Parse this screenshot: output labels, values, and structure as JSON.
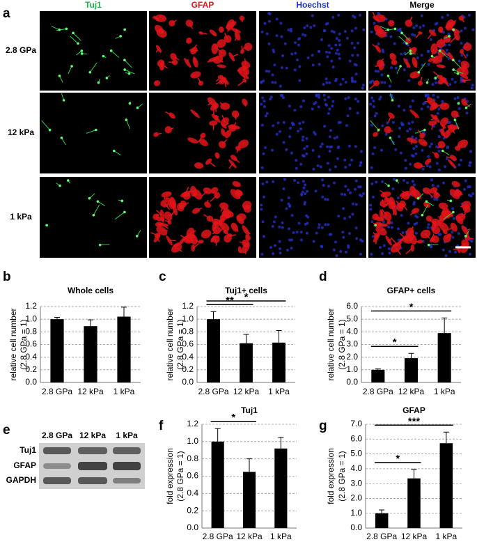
{
  "panel_a": {
    "panel": "a",
    "columns": [
      {
        "label": "Tuj1",
        "color": "#22b14c"
      },
      {
        "label": "GFAP",
        "color": "#e8141b"
      },
      {
        "label": "Hoechst",
        "color": "#1a2fd0"
      },
      {
        "label": "Merge",
        "color": "#000000"
      }
    ],
    "rows": [
      "2.8 GPa",
      "12 kPa",
      "1 kPa"
    ]
  },
  "panel_e": {
    "panel": "e",
    "columns": [
      "2.8 GPa",
      "12 kPa",
      "1 kPa"
    ],
    "rows": [
      "Tuj1",
      "GFAP",
      "GAPDH"
    ]
  },
  "chart_data": [
    {
      "type": "bar",
      "panel": "b",
      "title": "Whole cells",
      "ylabel": [
        "relative cell number",
        "(2.8 GPa = 1)"
      ],
      "categories": [
        "2.8 GPa",
        "12 kPa",
        "1 kPa"
      ],
      "series": [
        {
          "color": "#000000",
          "values": [
            1.0,
            0.89,
            1.04
          ],
          "errors": [
            0.03,
            0.1,
            0.15
          ]
        }
      ],
      "ylim": [
        0,
        1.2
      ],
      "yticks": [
        {
          "value": 0,
          "label": "0.0"
        },
        0.2,
        0.4,
        0.6,
        0.8,
        {
          "value": 1,
          "label": "1.0"
        },
        1.2
      ],
      "grid": true,
      "annotations": []
    },
    {
      "type": "bar",
      "panel": "c",
      "title": "Tuj1+ cells",
      "ylabel": [
        "relative cell number",
        "(2.8 GPa = 1)"
      ],
      "categories": [
        "2.8 GPa",
        "12 kPa",
        "1 kPa"
      ],
      "series": [
        {
          "color": "#000000",
          "values": [
            1.0,
            0.62,
            0.63
          ],
          "errors": [
            0.12,
            0.14,
            0.19
          ]
        }
      ],
      "ylim": [
        0,
        1.2
      ],
      "yticks": [
        {
          "value": 0,
          "label": "0.0"
        },
        0.2,
        0.4,
        0.6,
        0.8,
        {
          "value": 1,
          "label": "1.0"
        },
        1.2
      ],
      "grid": true,
      "annotations": [
        {
          "text": "**",
          "categories": [
            "2.8 GPa",
            "12 kPa"
          ]
        },
        {
          "text": "*",
          "categories": [
            "2.8 GPa",
            "1 kPa"
          ]
        }
      ]
    },
    {
      "type": "bar",
      "panel": "d",
      "title": "GFAP+ cells",
      "ylabel": [
        "relative cell number",
        "(2.8 GPa = 1)"
      ],
      "categories": [
        "2.8 GPa",
        "12 kPa",
        "1 kPa"
      ],
      "series": [
        {
          "color": "#000000",
          "values": [
            1.0,
            1.92,
            3.9
          ],
          "errors": [
            0.07,
            0.38,
            1.2
          ]
        }
      ],
      "ylim": [
        0,
        6
      ],
      "yticks": [
        {
          "value": 0,
          "label": "0.0"
        },
        {
          "value": 1,
          "label": "1.0"
        },
        {
          "value": 2,
          "label": "2.0"
        },
        {
          "value": 3,
          "label": "3.0"
        },
        {
          "value": 4,
          "label": "4.0"
        },
        {
          "value": 5,
          "label": "5.0"
        },
        {
          "value": 6,
          "label": "6.0"
        }
      ],
      "grid": true,
      "annotations": [
        {
          "text": "*",
          "categories": [
            "2.8 GPa",
            "12 kPa"
          ]
        },
        {
          "text": "*",
          "categories": [
            "2.8 GPa",
            "1 kPa"
          ]
        }
      ]
    },
    {
      "type": "bar",
      "panel": "f",
      "title": "Tuj1",
      "ylabel": [
        "fold expression",
        "(2.8 GPa = 1)"
      ],
      "categories": [
        "2.8 GPa",
        "12 kPa",
        "1 kPa"
      ],
      "series": [
        {
          "color": "#000000",
          "values": [
            1.0,
            0.65,
            0.92
          ],
          "errors": [
            0.15,
            0.15,
            0.13
          ]
        }
      ],
      "ylim": [
        0,
        1.2
      ],
      "yticks": [
        {
          "value": 0,
          "label": "0.0"
        },
        0.2,
        0.4,
        0.6,
        0.8,
        {
          "value": 1,
          "label": "1.0"
        },
        1.2
      ],
      "grid": true,
      "annotations": [
        {
          "text": "*",
          "categories": [
            "2.8 GPa",
            "12 kPa"
          ]
        }
      ]
    },
    {
      "type": "bar",
      "panel": "g",
      "title": "GFAP",
      "ylabel": [
        "fold expression",
        "(2.8 GPa = 1)"
      ],
      "categories": [
        "2.8 GPa",
        "12 kPa",
        "1 kPa"
      ],
      "series": [
        {
          "color": "#000000",
          "values": [
            1.0,
            3.35,
            5.72
          ],
          "errors": [
            0.22,
            0.6,
            0.75
          ]
        }
      ],
      "ylim": [
        0,
        7
      ],
      "yticks": [
        {
          "value": 0,
          "label": "0.0"
        },
        {
          "value": 1,
          "label": "1.0"
        },
        {
          "value": 2,
          "label": "2.0"
        },
        {
          "value": 3,
          "label": "3.0"
        },
        {
          "value": 4,
          "label": "4.0"
        },
        {
          "value": 5,
          "label": "5.0"
        },
        {
          "value": 6,
          "label": "6.0"
        },
        {
          "value": 7,
          "label": "7.0"
        }
      ],
      "grid": true,
      "annotations": [
        {
          "text": "*",
          "categories": [
            "2.8 GPa",
            "12 kPa"
          ]
        },
        {
          "text": "***",
          "categories": [
            "2.8 GPa",
            "1 kPa"
          ]
        }
      ]
    }
  ]
}
